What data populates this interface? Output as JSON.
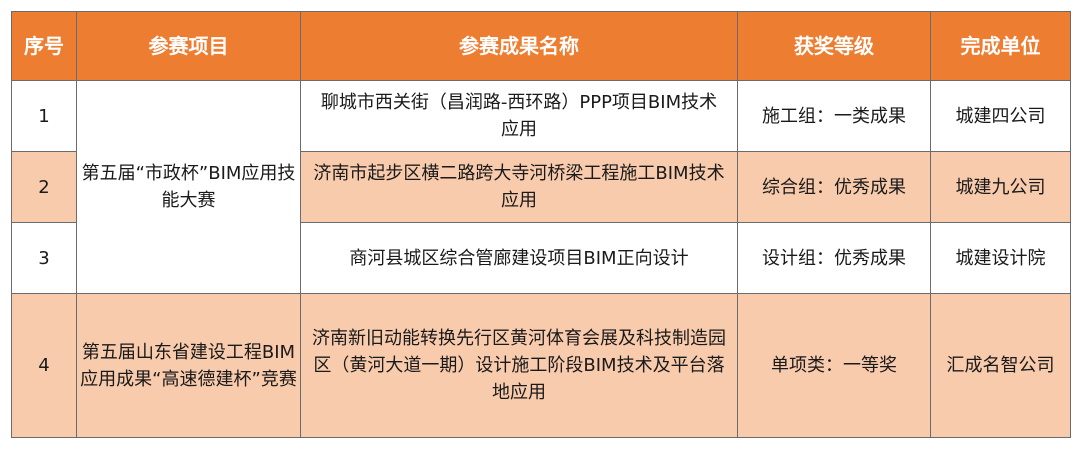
{
  "colors": {
    "header_bg": "#ED7D31",
    "alt_row_bg": "#F8CBAD",
    "row_bg": "#FFFFFF"
  },
  "headers": [
    "序号",
    "参赛项目",
    "参赛成果名称",
    "获奖等级",
    "完成单位"
  ],
  "rows": [
    {
      "no": "1",
      "project": "第五届“市政杯”BIM应用技能大赛",
      "result": "聊城市西关街（昌润路-西环路）PPP项目BIM技术应用",
      "award": "施工组：一类成果",
      "unit": "城建四公司"
    },
    {
      "no": "2",
      "result": "济南市起步区横二路跨大寺河桥梁工程施工BIM技术应用",
      "award": "综合组：优秀成果",
      "unit": "城建九公司"
    },
    {
      "no": "3",
      "result": "商河县城区综合管廊建设项目BIM正向设计",
      "award": "设计组：优秀成果",
      "unit": "城建设计院"
    },
    {
      "no": "4",
      "project": "第五届山东省建设工程BIM应用成果“高速德建杯”竞赛",
      "result": "济南新旧动能转换先行区黄河体育会展及科技制造园区（黄河大道一期）设计施工阶段BIM技术及平台落地应用",
      "award": "单项类：一等奖",
      "unit": "汇成名智公司"
    }
  ]
}
